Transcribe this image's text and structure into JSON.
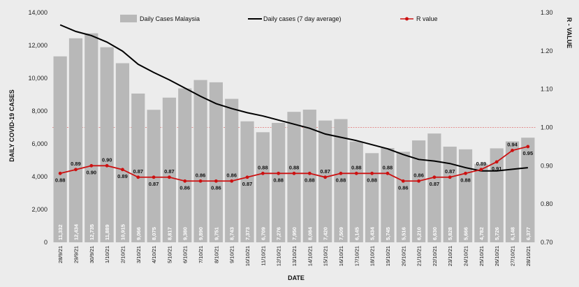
{
  "chart_data": {
    "type": "bar",
    "xlabel": "DATE",
    "ylabel": "DAILY COVID-19 CASES",
    "y2label": "R - VALUE",
    "ylim": [
      0,
      14000
    ],
    "y_ticks": [
      0,
      2000,
      4000,
      6000,
      8000,
      10000,
      12000,
      14000
    ],
    "y_tick_labels": [
      "0",
      "2,000",
      "4,000",
      "6,000",
      "8,000",
      "10,000",
      "12,000",
      "14,000"
    ],
    "y2lim": [
      0.7,
      1.3
    ],
    "y2_ticks": [
      0.7,
      0.8,
      0.9,
      1.0,
      1.1,
      1.2,
      1.3
    ],
    "y2_tick_labels": [
      "0.70",
      "0.80",
      "0.90",
      "1.00",
      "1.10",
      "1.20",
      "1.30"
    ],
    "reference_line": 1.0,
    "legend_position": "top",
    "categories": [
      "28/9/21",
      "29/9/21",
      "30/9/21",
      "1/10/21",
      "2/10/21",
      "3/10/21",
      "4/10/21",
      "5/10/21",
      "6/10/21",
      "7/10/21",
      "8/10/21",
      "9/10/21",
      "10/10/21",
      "11/10/21",
      "12/10/21",
      "13/10/21",
      "14/10/21",
      "15/10/21",
      "16/10/21",
      "17/10/21",
      "18/10/21",
      "19/10/21",
      "20/10/21",
      "21/10/21",
      "22/10/21",
      "23/10/21",
      "24/10/21",
      "25/10/21",
      "26/10/21",
      "27/10/21",
      "28/10/21"
    ],
    "series": [
      {
        "name": "Daily Cases Malaysia",
        "type": "bar",
        "color": "#b8b8b8",
        "values": [
          11332,
          12434,
          12735,
          11889,
          10915,
          9066,
          8075,
          8817,
          9380,
          9890,
          9751,
          8743,
          7373,
          6709,
          7276,
          7950,
          8084,
          7420,
          7509,
          6145,
          5434,
          5745,
          5516,
          6210,
          6630,
          5828,
          5666,
          4782,
          5726,
          6148,
          6377
        ],
        "labels": [
          "11,332",
          "12,434",
          "12,735",
          "11,889",
          "10,915",
          "9,066",
          "8,075",
          "8,817",
          "9,380",
          "9,890",
          "9,751",
          "8,743",
          "7,373",
          "6,709",
          "7,276",
          "7,950",
          "8,084",
          "7,420",
          "7,509",
          "6,145",
          "5,434",
          "5,745",
          "5,516",
          "6,210",
          "6,630",
          "5,828",
          "5,666",
          "4,782",
          "5,726",
          "6,148",
          "6,377"
        ]
      },
      {
        "name": "Daily cases (7 day average)",
        "type": "line",
        "color": "#000000",
        "values": [
          13250,
          12850,
          12600,
          12200,
          11650,
          10850,
          10350,
          9900,
          9400,
          8900,
          8450,
          8150,
          7900,
          7700,
          7450,
          7200,
          6950,
          6600,
          6400,
          6200,
          5950,
          5700,
          5350,
          5050,
          4950,
          4800,
          4550,
          4350,
          4350,
          4450,
          4550
        ]
      },
      {
        "name": "R value",
        "type": "line",
        "axis": "right",
        "color": "#cc1111",
        "values": [
          0.88,
          0.89,
          0.9,
          0.9,
          0.89,
          0.87,
          0.87,
          0.87,
          0.86,
          0.86,
          0.86,
          0.86,
          0.87,
          0.88,
          0.88,
          0.88,
          0.88,
          0.87,
          0.88,
          0.88,
          0.88,
          0.88,
          0.86,
          0.86,
          0.87,
          0.87,
          0.88,
          0.89,
          0.91,
          0.94,
          0.95
        ],
        "labels": [
          "0.88",
          "0.89",
          "0.90",
          "0.90",
          "0.89",
          "0.87",
          "0.87",
          "0.87",
          "0.86",
          "0.86",
          "0.86",
          "0.86",
          "0.87",
          "0.88",
          "0.88",
          "0.88",
          "0.88",
          "0.87",
          "0.88",
          "0.88",
          "0.88",
          "0.88",
          "0.86",
          "0.86",
          "0.87",
          "0.87",
          "0.88",
          "0.89",
          "0.91",
          "0.94",
          "0.95"
        ]
      }
    ]
  }
}
